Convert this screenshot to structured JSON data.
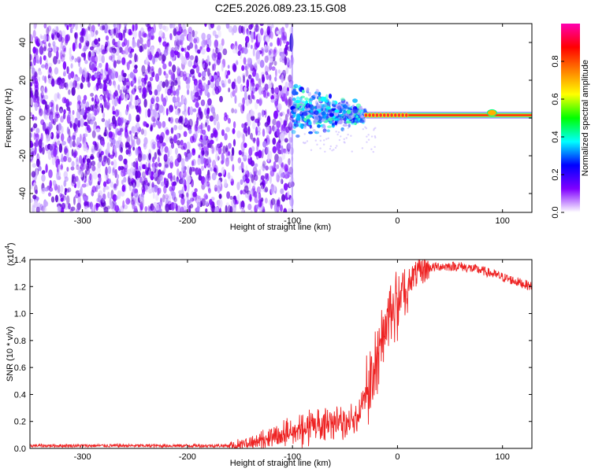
{
  "title": "C2E5.2026.089.23.15.G08",
  "chart_data": [
    {
      "type": "heatmap",
      "name": "spectrogram",
      "xlabel": "Height of straight line (km)",
      "ylabel": "Frequency (Hz)",
      "xlim": [
        -350,
        128
      ],
      "ylim": [
        -50,
        50
      ],
      "x_ticks": [
        -300,
        -200,
        -100,
        0,
        100
      ],
      "y_ticks": [
        -40,
        -20,
        0,
        20,
        40
      ],
      "x_tick_labels": [
        "-300",
        "-200",
        "-100",
        "0",
        "100"
      ],
      "y_tick_labels": [
        "-40",
        "-20",
        "0",
        "20",
        "40"
      ],
      "noise_region": {
        "x_range": [
          -350,
          -100
        ],
        "y_range": [
          -50,
          50
        ]
      },
      "signal_cluster": {
        "x_range": [
          -100,
          -30
        ],
        "center_freq": 4,
        "spread": 12
      },
      "tone": {
        "x_range": [
          -30,
          128
        ],
        "freq": 1.5
      },
      "colorbar": {
        "label": "Normalized spectral amplitude",
        "range": [
          0,
          1
        ],
        "ticks": [
          0,
          0.2,
          0.4,
          0.6,
          0.8
        ],
        "tick_labels": [
          "0.0",
          "0.2",
          "0.4",
          "0.6",
          "0.8"
        ],
        "colors": [
          "#ffffff",
          "#8000ff",
          "#0000ff",
          "#00ffff",
          "#00ff00",
          "#ffff00",
          "#ff8000",
          "#ff0000",
          "#ff00b0"
        ]
      }
    },
    {
      "type": "line",
      "name": "snr",
      "xlabel": "Height of straight line (km)",
      "ylabel": "SNR (10 * v/v)",
      "multiplier_label": "(x10",
      "multiplier_exp": "4",
      "multiplier_close": ")",
      "xlim": [
        -350,
        128
      ],
      "ylim": [
        0,
        1.4
      ],
      "x_ticks": [
        -300,
        -200,
        -100,
        0,
        100
      ],
      "y_ticks": [
        0,
        0.2,
        0.4,
        0.6,
        0.8,
        1.0,
        1.2,
        1.4
      ],
      "x_tick_labels": [
        "-300",
        "-200",
        "-100",
        "0",
        "100"
      ],
      "y_tick_labels": [
        "0.0",
        "0.2",
        "0.4",
        "0.6",
        "0.8",
        "1.0",
        "1.2",
        "1.4"
      ],
      "series": [
        {
          "name": "SNR",
          "color": "#ee2222",
          "x": [
            -350,
            -300,
            -250,
            -200,
            -160,
            -140,
            -120,
            -100,
            -80,
            -60,
            -40,
            -30,
            -20,
            -10,
            0,
            10,
            20,
            30,
            40,
            60,
            80,
            100,
            128
          ],
          "y": [
            0.02,
            0.02,
            0.02,
            0.02,
            0.02,
            0.04,
            0.08,
            0.15,
            0.18,
            0.2,
            0.22,
            0.45,
            0.7,
            0.95,
            1.12,
            1.25,
            1.3,
            1.34,
            1.35,
            1.35,
            1.32,
            1.27,
            1.2
          ]
        }
      ]
    }
  ]
}
